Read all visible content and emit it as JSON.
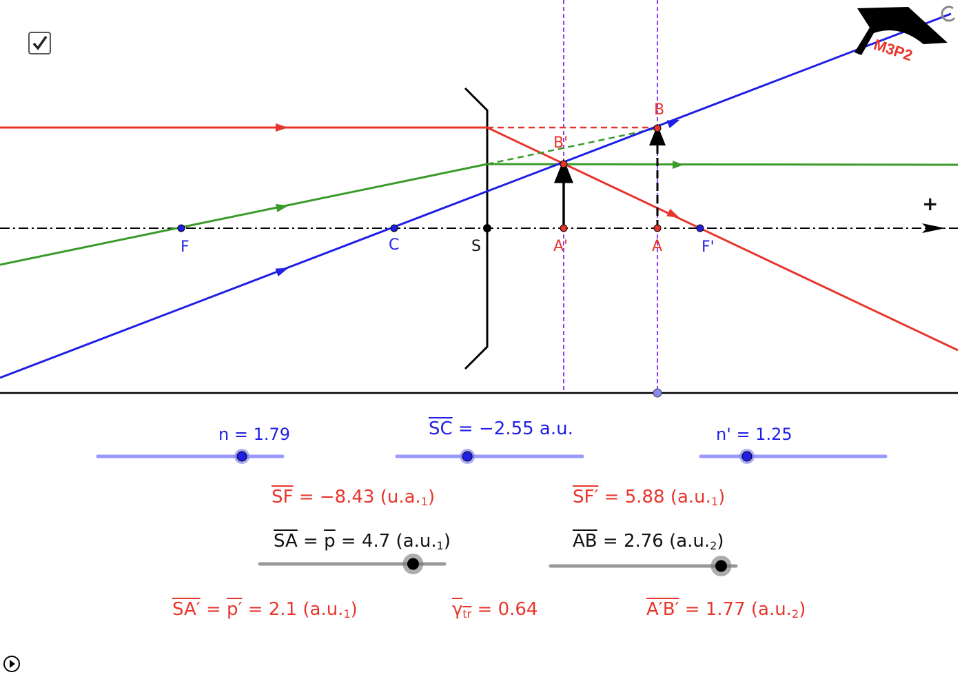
{
  "checkbox": {
    "checked": true
  },
  "points": {
    "F": "F",
    "C": "C",
    "S": "S",
    "A_prime": "A'",
    "A": "A",
    "F_prime": "F'",
    "B": "B",
    "B_prime": "B'"
  },
  "axis_direction_label": "+",
  "logo_text": "M3P2",
  "colors": {
    "red": "#e8352b",
    "blue": "#1f1fe6",
    "green": "#3a9a2a",
    "purple": "#8a3ffc",
    "slider_blue": "#9999ff",
    "slider_gray": "#999999"
  },
  "sliders": {
    "n": {
      "label": "n = 1.79",
      "value": 1.79,
      "fraction": 0.78
    },
    "SC": {
      "sym": "SC",
      "rest": " = −2.55 a.u.",
      "value": -2.55,
      "fraction": 0.38
    },
    "n_prime": {
      "label": "n' = 1.25",
      "value": 1.25,
      "fraction": 0.25
    },
    "SA": {
      "sym": "SA",
      "eq": " = ",
      "p": "p",
      "rest": " = 4.7 (a.u.",
      "sub": "1",
      "close": ")",
      "value": 4.7,
      "fraction": 0.83
    },
    "AB": {
      "sym": "AB",
      "rest": " =  2.76 (a.u.",
      "sub": "2",
      "close": ")",
      "value": 2.76,
      "fraction": 0.92
    }
  },
  "results": {
    "SF": {
      "sym": "SF",
      "rest": " = −8.43 (u.a.",
      "sub": "1",
      "close": ")"
    },
    "SF_prime": {
      "sym": "SF′",
      "rest": " = 5.88 (a.u.",
      "sub": "1",
      "close": ")"
    },
    "SA_prime": {
      "sym": "SA′",
      "eq": " = ",
      "p": "p′",
      "rest": " = 2.1 (a.u.",
      "sub": "1",
      "close": ")"
    },
    "gamma": {
      "sym": "γ",
      "sub": "tr",
      "rest": " = 0.64"
    },
    "AB_prime": {
      "sym": "A′B′",
      "rest": " = 1.77 (a.u.",
      "sub": "2",
      "close": ")"
    }
  }
}
